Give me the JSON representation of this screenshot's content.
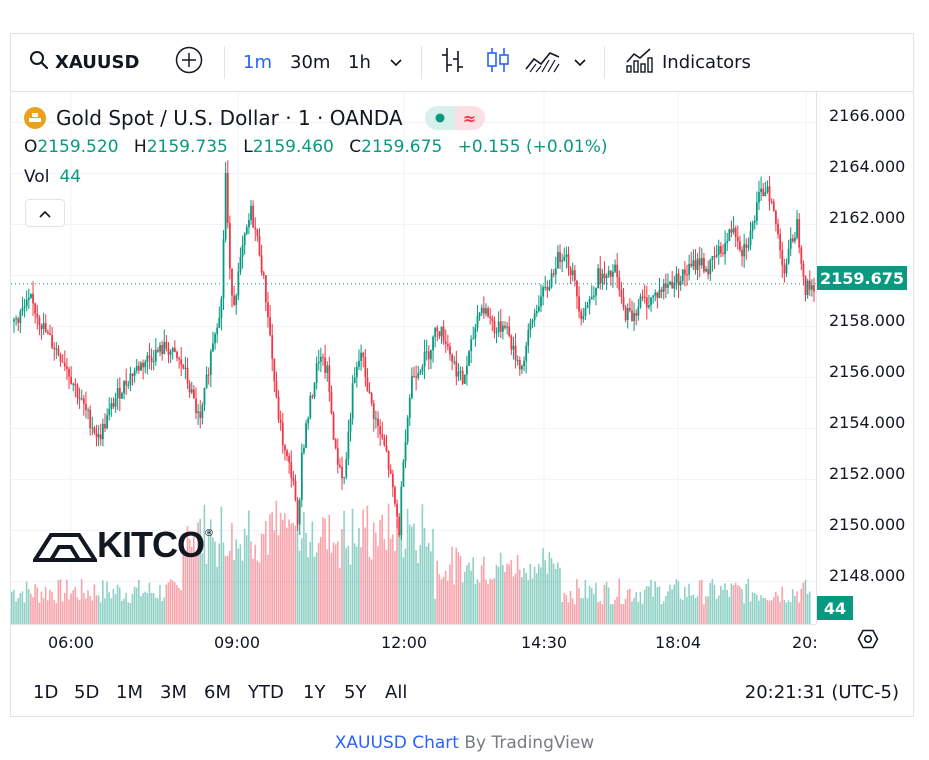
{
  "toolbar": {
    "symbol": "XAUUSD",
    "timeframes": [
      "1m",
      "30m",
      "1h"
    ],
    "active_timeframe": "1m",
    "indicators_label": "Indicators"
  },
  "legend": {
    "title": "Gold Spot / U.S. Dollar · 1 · OANDA",
    "open_label": "O",
    "open": "2159.520",
    "high_label": "H",
    "high": "2159.735",
    "low_label": "L",
    "low": "2159.460",
    "close_label": "C",
    "close": "2159.675",
    "change": "+0.155 (+0.01%)",
    "vol_label": "Vol",
    "vol": "44"
  },
  "price_axis": {
    "labels": [
      "2166.000",
      "2164.000",
      "2162.000",
      "2158.000",
      "2156.000",
      "2154.000",
      "2152.000",
      "2150.000",
      "2148.000"
    ],
    "current_price": "2159.675",
    "current_volume": "44"
  },
  "time_axis": {
    "labels": [
      "06:00",
      "09:00",
      "12:00",
      "14:30",
      "18:04",
      "20:"
    ]
  },
  "ranges": [
    "1D",
    "5D",
    "1M",
    "3M",
    "6M",
    "YTD",
    "1Y",
    "5Y",
    "All"
  ],
  "clock": "20:21:31 (UTC-5)",
  "watermark": "KITCO",
  "footer": {
    "link_text": "XAUUSD Chart",
    "suffix": " By TradingView"
  },
  "colors": {
    "up": "#089981",
    "down": "#f23645",
    "accent": "#2962ff",
    "gold": "#e9a21c"
  },
  "chart_data": {
    "type": "candlestick",
    "ylim": [
      2147,
      2167
    ],
    "x_ticks": [
      "06:00",
      "09:00",
      "12:00",
      "14:30",
      "18:04",
      "20:"
    ],
    "close_path": [
      [
        0,
        2158.2
      ],
      [
        4,
        2159
      ],
      [
        8,
        2157.6
      ],
      [
        12,
        2156.6
      ],
      [
        16,
        2155
      ],
      [
        20,
        2153.6
      ],
      [
        24,
        2155.2
      ],
      [
        28,
        2156.2
      ],
      [
        32,
        2156.8
      ],
      [
        36,
        2157.2
      ],
      [
        40,
        2156.4
      ],
      [
        44,
        2154.2
      ],
      [
        47,
        2157.5
      ],
      [
        49,
        2159
      ],
      [
        50,
        2164
      ],
      [
        51,
        2160
      ],
      [
        52,
        2159
      ],
      [
        54,
        2161
      ],
      [
        56,
        2162.5
      ],
      [
        58,
        2161
      ],
      [
        60,
        2158.5
      ],
      [
        62,
        2155
      ],
      [
        64,
        2153
      ],
      [
        66,
        2152
      ],
      [
        67,
        2150
      ],
      [
        68,
        2153
      ],
      [
        70,
        2155
      ],
      [
        72,
        2156.8
      ],
      [
        74,
        2156.2
      ],
      [
        76,
        2153
      ],
      [
        78,
        2152
      ],
      [
        80,
        2155.5
      ],
      [
        82,
        2157
      ],
      [
        84,
        2155.2
      ],
      [
        86,
        2154
      ],
      [
        88,
        2153
      ],
      [
        90,
        2151
      ],
      [
        91,
        2150
      ],
      [
        92,
        2153
      ],
      [
        94,
        2156
      ],
      [
        96,
        2156.5
      ],
      [
        98,
        2157
      ],
      [
        100,
        2158
      ],
      [
        102,
        2157.5
      ],
      [
        104,
        2156.5
      ],
      [
        106,
        2155.8
      ],
      [
        108,
        2157.2
      ],
      [
        110,
        2158.8
      ],
      [
        112,
        2158.5
      ],
      [
        114,
        2157.8
      ],
      [
        116,
        2158.2
      ],
      [
        118,
        2157
      ],
      [
        120,
        2156.4
      ],
      [
        122,
        2158
      ],
      [
        124,
        2159
      ],
      [
        126,
        2159.5
      ],
      [
        128,
        2160.5
      ],
      [
        130,
        2161
      ],
      [
        132,
        2160
      ],
      [
        134,
        2158.5
      ],
      [
        136,
        2159
      ],
      [
        138,
        2160
      ],
      [
        140,
        2159.8
      ],
      [
        142,
        2160.2
      ],
      [
        144,
        2158.6
      ],
      [
        146,
        2158.4
      ],
      [
        148,
        2159
      ],
      [
        150,
        2159
      ],
      [
        152,
        2159.3
      ],
      [
        154,
        2159.6
      ],
      [
        156,
        2159.8
      ],
      [
        158,
        2160
      ],
      [
        160,
        2160.3
      ],
      [
        162,
        2160.6
      ],
      [
        164,
        2160.2
      ],
      [
        166,
        2160.8
      ],
      [
        168,
        2161.2
      ],
      [
        170,
        2162
      ],
      [
        172,
        2161
      ],
      [
        174,
        2161.6
      ],
      [
        176,
        2163
      ],
      [
        178,
        2163.6
      ],
      [
        180,
        2162
      ],
      [
        182,
        2160.2
      ],
      [
        184,
        2161.5
      ],
      [
        185,
        2162
      ],
      [
        187,
        2159.5
      ],
      [
        189,
        2159.6
      ]
    ],
    "volume": {
      "max": 1000,
      "last": 44
    }
  }
}
